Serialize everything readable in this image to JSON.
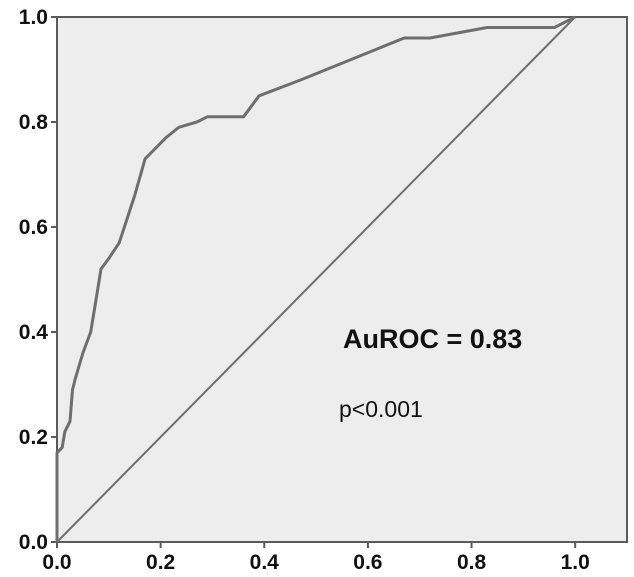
{
  "chart_data": {
    "type": "line",
    "title": "",
    "xlabel": "",
    "ylabel": "",
    "xlim": [
      0,
      1.1
    ],
    "ylim": [
      0,
      1.0
    ],
    "grid": false,
    "x_ticks": [
      "0.0",
      "0.2",
      "0.4",
      "0.6",
      "0.8",
      "1.0"
    ],
    "y_ticks": [
      "0.0",
      "0.2",
      "0.4",
      "0.6",
      "0.8",
      "1.0"
    ],
    "series": [
      {
        "color": "#6e6e6e",
        "x": [
          0.0,
          0.0,
          0.01,
          0.015,
          0.02,
          0.025,
          0.03,
          0.035,
          0.05,
          0.065,
          0.075,
          0.085,
          0.1,
          0.12,
          0.15,
          0.17,
          0.19,
          0.21,
          0.235,
          0.27,
          0.29,
          0.36,
          0.39,
          0.47,
          0.57,
          0.62,
          0.67,
          0.72,
          0.83,
          0.96,
          1.0
        ],
        "y": [
          0.0,
          0.17,
          0.18,
          0.21,
          0.22,
          0.23,
          0.29,
          0.31,
          0.36,
          0.4,
          0.46,
          0.52,
          0.54,
          0.57,
          0.66,
          0.73,
          0.75,
          0.77,
          0.79,
          0.8,
          0.81,
          0.81,
          0.85,
          0.88,
          0.92,
          0.94,
          0.96,
          0.96,
          0.98,
          0.98,
          1.0
        ]
      },
      {
        "color": "#6e6e6e",
        "x": [
          0.0,
          1.0
        ],
        "y": [
          0.0,
          1.0
        ]
      }
    ],
    "annotations": [
      "AuROC  = 0.83",
      "p<0.001"
    ]
  }
}
